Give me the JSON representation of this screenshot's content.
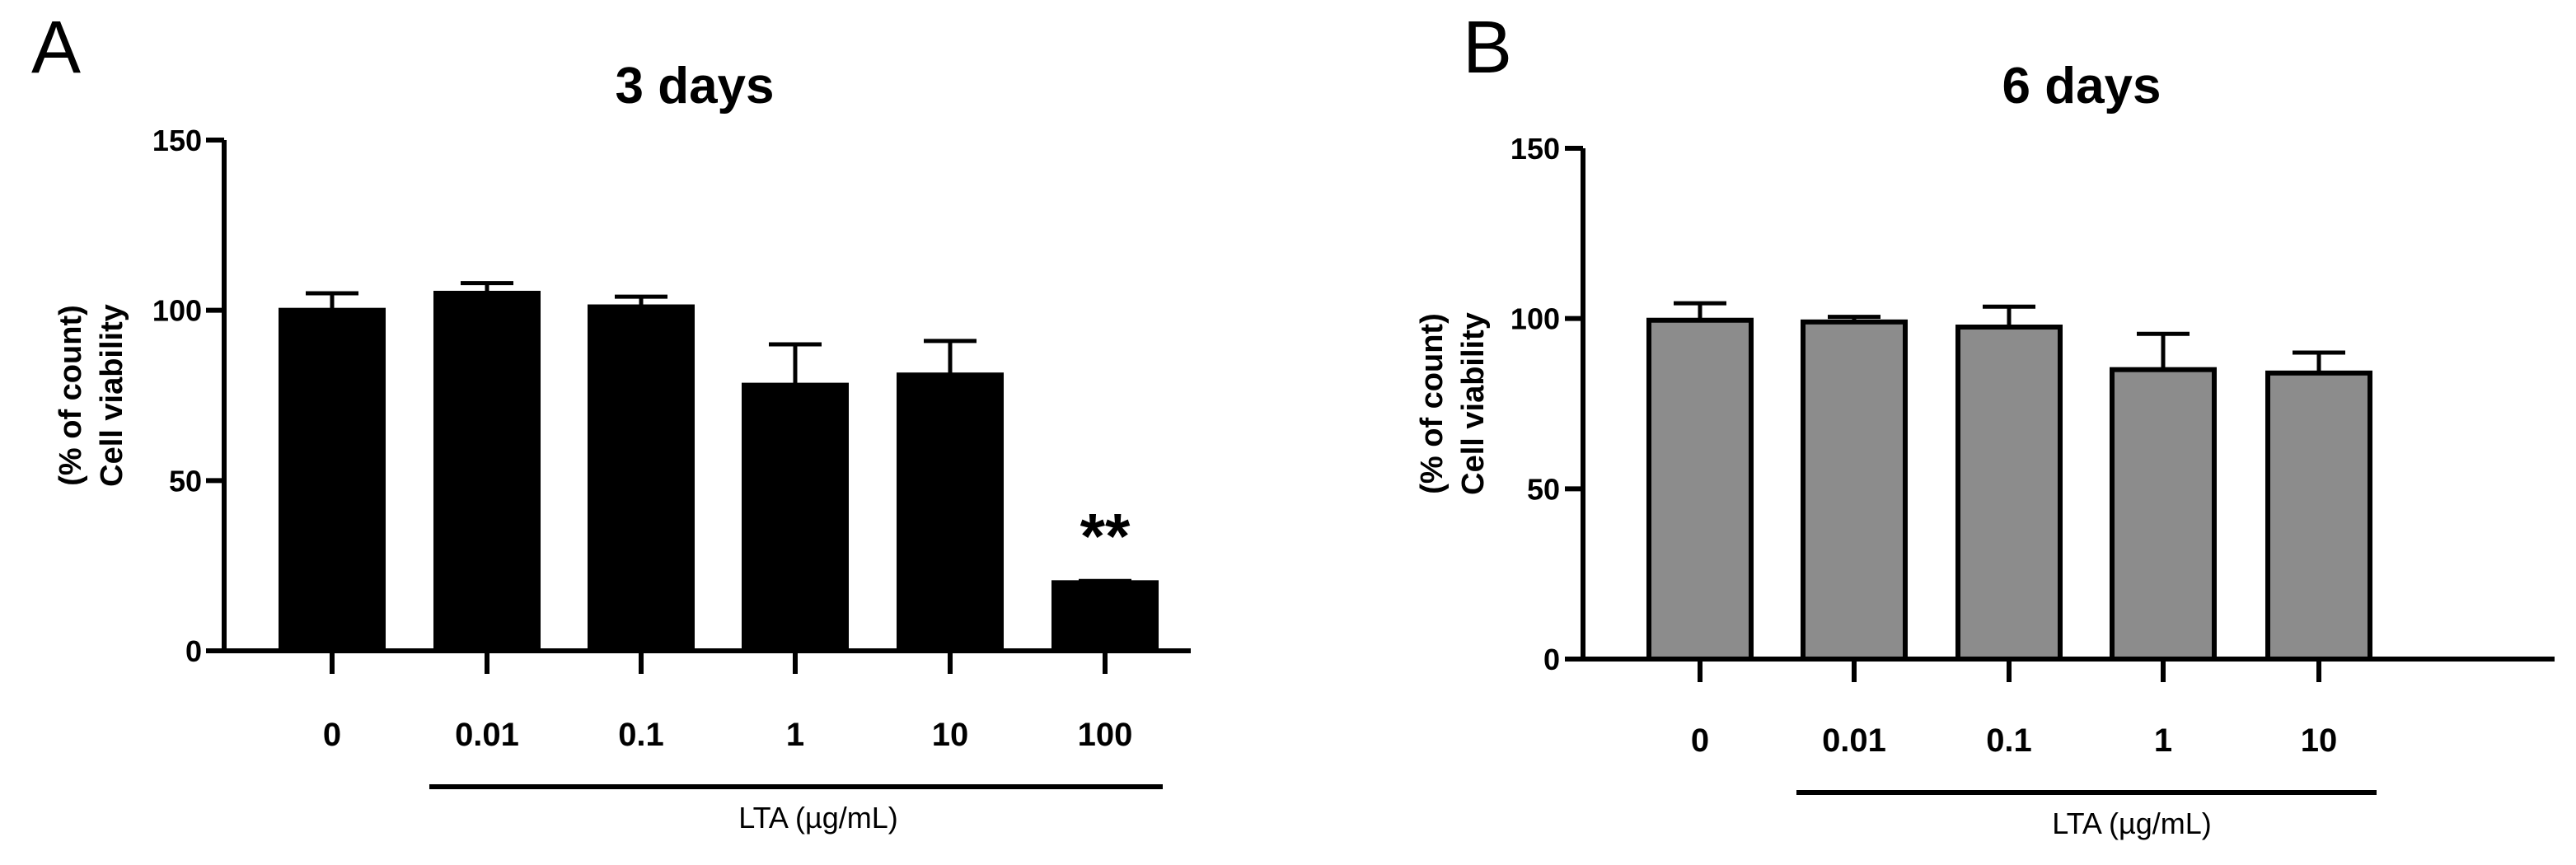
{
  "chart_data": [
    {
      "type": "bar",
      "panel_label": "A",
      "title": "3 days",
      "ylabel_lines": [
        "(% of count)",
        "Cell viability"
      ],
      "xlabel": "LTA (µg/mL)",
      "categories": [
        "0",
        "0.01",
        "0.1",
        "1",
        "10",
        "100"
      ],
      "values": [
        100,
        105,
        101,
        78,
        81,
        20
      ],
      "errors": [
        5,
        3,
        3,
        12,
        10,
        0.5
      ],
      "yticks": [
        "0",
        "50",
        "100",
        "150"
      ],
      "ylim": [
        0,
        150
      ],
      "bar_color": "#000000",
      "annotations": [
        {
          "category": "100",
          "text": "**"
        }
      ],
      "underline_categories": [
        "0.01",
        "100"
      ]
    },
    {
      "type": "bar",
      "panel_label": "B",
      "title": "6 days",
      "ylabel_lines": [
        "(% of count)",
        "Cell viability"
      ],
      "xlabel": "LTA (µg/mL)",
      "categories": [
        "0",
        "0.01",
        "0.1",
        "1",
        "10"
      ],
      "values": [
        99.5,
        99,
        97.5,
        85,
        84
      ],
      "errors": [
        5,
        1.5,
        6,
        10.5,
        6
      ],
      "yticks": [
        "0",
        "50",
        "100",
        "150"
      ],
      "ylim": [
        0,
        150
      ],
      "bar_color": "#8c8c8c",
      "annotations": [],
      "underline_categories": [
        "0.01",
        "10"
      ]
    }
  ]
}
